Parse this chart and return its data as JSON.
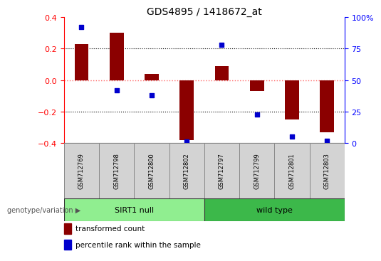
{
  "title": "GDS4895 / 1418672_at",
  "samples": [
    "GSM712769",
    "GSM712798",
    "GSM712800",
    "GSM712802",
    "GSM712797",
    "GSM712799",
    "GSM712801",
    "GSM712803"
  ],
  "transformed_count": [
    0.23,
    0.3,
    0.04,
    -0.38,
    0.09,
    -0.07,
    -0.25,
    -0.33
  ],
  "percentile_rank": [
    92,
    42,
    38,
    1,
    78,
    23,
    5,
    2
  ],
  "groups": [
    {
      "label": "SIRT1 null",
      "start": 0,
      "end": 3,
      "color": "#90EE90"
    },
    {
      "label": "wild type",
      "start": 4,
      "end": 7,
      "color": "#3CB84A"
    }
  ],
  "bar_color": "#8B0000",
  "dot_color": "#0000CD",
  "ylim_left": [
    -0.4,
    0.4
  ],
  "ylim_right": [
    0,
    100
  ],
  "yticks_left": [
    -0.4,
    -0.2,
    0.0,
    0.2,
    0.4
  ],
  "yticks_right": [
    0,
    25,
    50,
    75,
    100
  ],
  "ytick_labels_right": [
    "0",
    "25",
    "50",
    "75",
    "100%"
  ],
  "hlines_dotted": [
    -0.2,
    0.2
  ],
  "hline_zero_color": "#FF6666",
  "hline_dotted_color": "black",
  "title_fontsize": 10,
  "legend_items": [
    {
      "label": "transformed count",
      "color": "#8B0000"
    },
    {
      "label": "percentile rank within the sample",
      "color": "#0000CD"
    }
  ],
  "group_label": "genotype/variation",
  "box_color": "#D3D3D3",
  "background_color": "#ffffff",
  "bar_width": 0.4
}
